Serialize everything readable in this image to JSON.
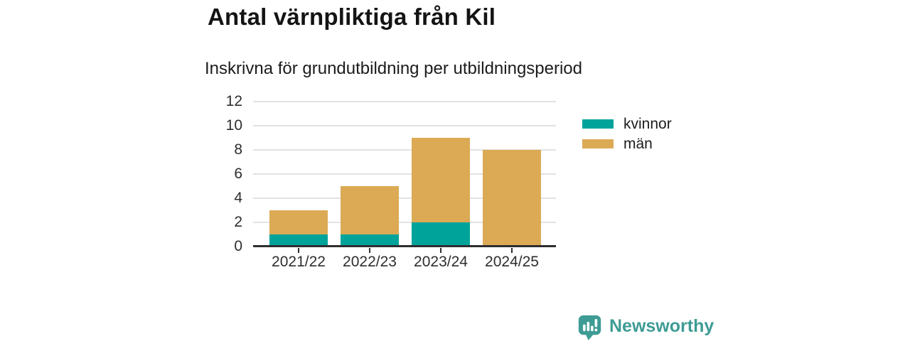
{
  "header": {
    "title": "Antal värnpliktiga från Kil",
    "subtitle": "Inskrivna för grundutbildning per utbildningsperiod"
  },
  "chart_data": {
    "type": "bar",
    "stacked": true,
    "title": "Antal värnpliktiga från Kil",
    "subtitle": "Inskrivna för grundutbildning per utbildningsperiod",
    "categories": [
      "2021/22",
      "2022/23",
      "2023/24",
      "2024/25"
    ],
    "series": [
      {
        "name": "kvinnor",
        "color": "#00a39a",
        "values": [
          1,
          1,
          2,
          0
        ]
      },
      {
        "name": "män",
        "color": "#dcaa55",
        "values": [
          2,
          4,
          7,
          8
        ]
      }
    ],
    "totals": [
      3,
      5,
      9,
      8
    ],
    "xlabel": "",
    "ylabel": "",
    "ylim": [
      0,
      12
    ],
    "ytick_step": 2,
    "yticks": [
      0,
      2,
      4,
      6,
      8,
      10,
      12
    ],
    "grid": "horizontal",
    "legend_position": "right"
  },
  "footer": {
    "brand": "Newsworthy",
    "brand_color": "#3e9c95"
  },
  "colors": {
    "series_kvinnor": "#00a39a",
    "series_man": "#dcaa55",
    "gridline": "#e2e2e2",
    "axis": "#2e2e2e",
    "title_text": "#141414",
    "body_text": "#1c1c1c"
  }
}
